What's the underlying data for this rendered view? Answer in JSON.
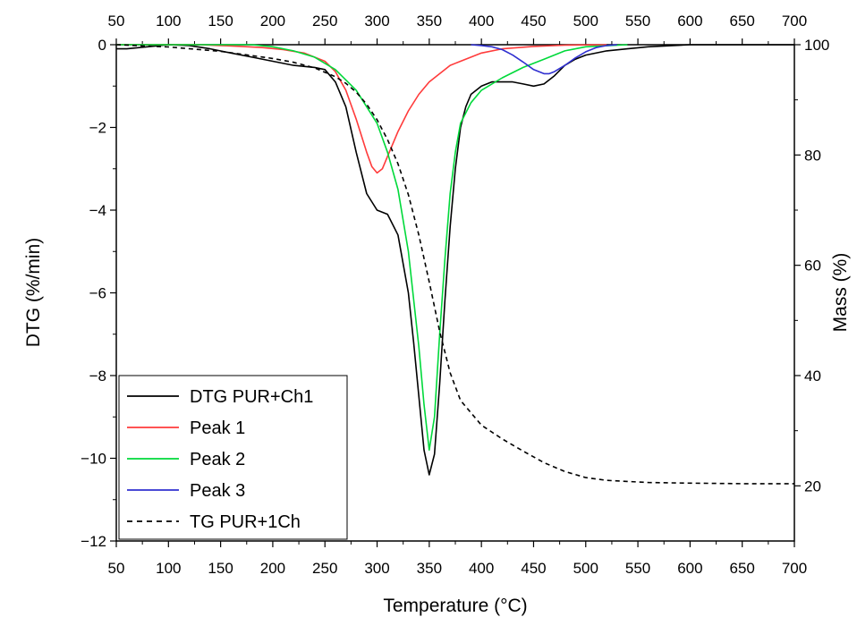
{
  "chart_data": {
    "type": "line",
    "xlabel": "Temperature (°C)",
    "ylabel_left": "DTG (%/min)",
    "ylabel_right": "Mass (%)",
    "xlim": [
      50,
      700
    ],
    "ylim_left": [
      -12,
      0
    ],
    "ylim_right": [
      10,
      100
    ],
    "x_ticks": [
      "50",
      "100",
      "150",
      "200",
      "250",
      "300",
      "350",
      "400",
      "450",
      "500",
      "550",
      "600",
      "650",
      "700"
    ],
    "x_tick_values": [
      50,
      100,
      150,
      200,
      250,
      300,
      350,
      400,
      450,
      500,
      550,
      600,
      650,
      700
    ],
    "y_left_ticks": [
      "0",
      "−2",
      "−4",
      "−6",
      "−8",
      "−10",
      "−12"
    ],
    "y_left_tick_values": [
      0,
      -2,
      -4,
      -6,
      -8,
      -10,
      -12
    ],
    "y_right_ticks": [
      "100",
      "80",
      "60",
      "40",
      "20"
    ],
    "y_right_tick_values": [
      100,
      80,
      60,
      40,
      20
    ],
    "grid": false,
    "legend_position": "bottom-left",
    "series": [
      {
        "name": "DTG PUR+Ch1",
        "color": "#000000",
        "dash": "solid",
        "axis": "left",
        "x": [
          50,
          60,
          80,
          100,
          120,
          140,
          160,
          180,
          200,
          220,
          240,
          250,
          260,
          270,
          280,
          290,
          300,
          310,
          320,
          330,
          335,
          340,
          345,
          350,
          355,
          360,
          365,
          370,
          375,
          380,
          385,
          390,
          400,
          410,
          420,
          430,
          440,
          450,
          460,
          470,
          480,
          490,
          500,
          520,
          540,
          560,
          600,
          650,
          700
        ],
        "y": [
          -0.1,
          -0.1,
          -0.05,
          0,
          -0.02,
          -0.1,
          -0.2,
          -0.3,
          -0.4,
          -0.5,
          -0.55,
          -0.6,
          -0.9,
          -1.5,
          -2.6,
          -3.6,
          -4.0,
          -4.1,
          -4.6,
          -6.0,
          -7.2,
          -8.5,
          -9.8,
          -10.4,
          -9.9,
          -8.2,
          -6.2,
          -4.4,
          -3.0,
          -2.0,
          -1.5,
          -1.2,
          -1.0,
          -0.9,
          -0.9,
          -0.9,
          -0.95,
          -1.0,
          -0.95,
          -0.75,
          -0.5,
          -0.35,
          -0.25,
          -0.15,
          -0.1,
          -0.05,
          0,
          0,
          0
        ]
      },
      {
        "name": "Peak 1",
        "color": "#ff3b3b",
        "dash": "solid",
        "axis": "left",
        "x": [
          50,
          100,
          130,
          150,
          170,
          190,
          210,
          230,
          250,
          260,
          270,
          280,
          290,
          295,
          300,
          305,
          310,
          320,
          330,
          340,
          350,
          360,
          370,
          380,
          400,
          420,
          450,
          480,
          520
        ],
        "y": [
          0,
          0,
          0,
          -0.02,
          -0.04,
          -0.07,
          -0.12,
          -0.2,
          -0.4,
          -0.65,
          -1.1,
          -1.8,
          -2.6,
          -2.95,
          -3.1,
          -3.0,
          -2.7,
          -2.1,
          -1.6,
          -1.2,
          -0.9,
          -0.7,
          -0.5,
          -0.4,
          -0.2,
          -0.1,
          -0.04,
          -0.01,
          0
        ]
      },
      {
        "name": "Peak 2",
        "color": "#00d93a",
        "dash": "solid",
        "axis": "left",
        "x": [
          50,
          180,
          200,
          220,
          240,
          260,
          280,
          300,
          310,
          320,
          330,
          340,
          345,
          350,
          355,
          360,
          365,
          370,
          375,
          380,
          390,
          400,
          420,
          440,
          460,
          480,
          500,
          540
        ],
        "y": [
          0,
          0,
          -0.05,
          -0.15,
          -0.3,
          -0.6,
          -1.1,
          -1.9,
          -2.6,
          -3.5,
          -5.0,
          -7.3,
          -8.7,
          -9.8,
          -9.0,
          -7.0,
          -5.2,
          -3.6,
          -2.6,
          -1.9,
          -1.4,
          -1.1,
          -0.8,
          -0.55,
          -0.35,
          -0.15,
          -0.05,
          0
        ]
      },
      {
        "name": "Peak 3",
        "color": "#3030d0",
        "dash": "solid",
        "axis": "left",
        "x": [
          390,
          400,
          410,
          420,
          430,
          440,
          450,
          460,
          465,
          470,
          480,
          490,
          500,
          510,
          520,
          530
        ],
        "y": [
          0,
          -0.02,
          -0.05,
          -0.12,
          -0.25,
          -0.42,
          -0.6,
          -0.7,
          -0.7,
          -0.65,
          -0.5,
          -0.32,
          -0.17,
          -0.07,
          -0.02,
          0
        ]
      },
      {
        "name": "TG PUR+1Ch",
        "color": "#000000",
        "dash": "dashed",
        "axis": "right",
        "x": [
          50,
          100,
          150,
          200,
          220,
          240,
          260,
          270,
          280,
          290,
          300,
          310,
          320,
          330,
          340,
          350,
          360,
          370,
          380,
          400,
          420,
          440,
          460,
          480,
          500,
          520,
          540,
          560,
          600,
          650,
          700
        ],
        "y": [
          100,
          99.6,
          98.8,
          97.5,
          96.8,
          95.8,
          94.2,
          93.0,
          91.4,
          89.2,
          86.4,
          82.8,
          78.4,
          72.8,
          65.5,
          57.0,
          48.0,
          40.5,
          35.5,
          31.0,
          28.5,
          26.3,
          24.2,
          22.6,
          21.5,
          21.0,
          20.8,
          20.6,
          20.5,
          20.4,
          20.4
        ]
      }
    ]
  }
}
